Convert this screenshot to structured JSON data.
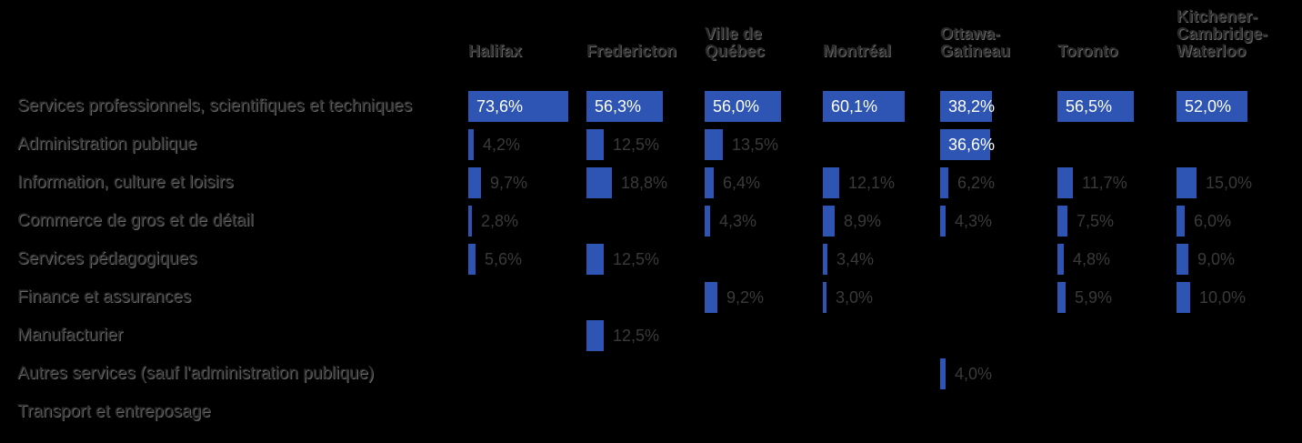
{
  "chart_data": {
    "type": "bar",
    "orientation": "horizontal",
    "layout": "small-multiples",
    "columns": [
      "Halifax",
      "Fredericton",
      "Ville de Québec",
      "Montréal",
      "Ottawa-Gatineau",
      "Toronto",
      "Kitchener-Cambridge-Waterloo"
    ],
    "column_display": [
      [
        "Halifax"
      ],
      [
        "Fredericton"
      ],
      [
        "Ville de",
        "Québec"
      ],
      [
        "Montréal"
      ],
      [
        "Ottawa-",
        "Gatineau"
      ],
      [
        "Toronto"
      ],
      [
        "Kitchener-",
        "Cambridge-",
        "Waterloo"
      ]
    ],
    "categories": [
      "Services professionnels, scientifiques et techniques",
      "Administration publique",
      "Information, culture et loisirs",
      "Commerce de gros et de détail",
      "Services pédagogiques",
      "Finance et assurances",
      "Manufacturier",
      "Autres services (sauf l'administration publique)",
      "Transport et entreposage"
    ],
    "series": [
      {
        "values": [
          73.6,
          4.2,
          9.7,
          2.8,
          5.6,
          null,
          null,
          null,
          null
        ],
        "labels": [
          "73,6%",
          "4,2%",
          "9,7%",
          "2,8%",
          "5,6%",
          "",
          "",
          "",
          ""
        ]
      },
      {
        "values": [
          56.3,
          12.5,
          18.8,
          null,
          12.5,
          null,
          12.5,
          null,
          null
        ],
        "labels": [
          "56,3%",
          "12,5%",
          "18,8%",
          "",
          "12,5%",
          "",
          "12,5%",
          "",
          ""
        ]
      },
      {
        "values": [
          56.0,
          13.5,
          6.4,
          4.3,
          null,
          9.2,
          null,
          null,
          null
        ],
        "labels": [
          "56,0%",
          "13,5%",
          "6,4%",
          "4,3%",
          "",
          "9,2%",
          "",
          "",
          ""
        ]
      },
      {
        "values": [
          60.1,
          null,
          12.1,
          8.9,
          3.4,
          3.0,
          null,
          null,
          null
        ],
        "labels": [
          "60,1%",
          "",
          "12,1%",
          "8,9%",
          "3,4%",
          "3,0%",
          "",
          "",
          ""
        ]
      },
      {
        "values": [
          38.2,
          36.6,
          6.2,
          4.3,
          null,
          null,
          null,
          4.0,
          null
        ],
        "labels": [
          "38,2%",
          "36,6%",
          "6,2%",
          "4,3%",
          "",
          "",
          "",
          "4,0%",
          ""
        ]
      },
      {
        "values": [
          56.5,
          null,
          11.7,
          7.5,
          4.8,
          5.9,
          null,
          null,
          null
        ],
        "labels": [
          "56,5%",
          "",
          "11,7%",
          "7,5%",
          "4,8%",
          "5,9%",
          "",
          "",
          ""
        ]
      },
      {
        "values": [
          52.0,
          null,
          15.0,
          6.0,
          9.0,
          10.0,
          null,
          null,
          null
        ],
        "labels": [
          "52,0%",
          "",
          "15,0%",
          "6,0%",
          "9,0%",
          "10,0%",
          "",
          "",
          ""
        ]
      }
    ],
    "xlim": [
      0,
      80
    ],
    "bar_color": "#2e55b3",
    "grid": false,
    "legend": "none"
  },
  "colors": {
    "background": "#000000",
    "bar": "#2e55b3",
    "label_inside": "#ffffff",
    "label_outside": "#3a3a3a"
  }
}
